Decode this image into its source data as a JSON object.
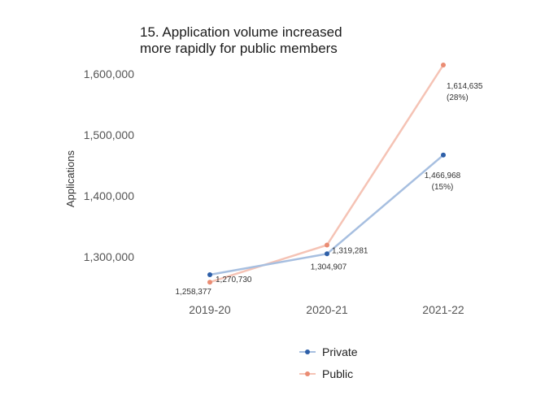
{
  "chart_data": {
    "type": "line",
    "title_line1": "15. Application volume increased",
    "title_line2": "more rapidly for public members",
    "xlabel": "",
    "ylabel": "Applications",
    "categories": [
      "2019-20",
      "2020-21",
      "2021-22"
    ],
    "y_ticks": [
      1300000,
      1400000,
      1500000,
      1600000
    ],
    "y_tick_labels": [
      "1,300,000",
      "1,400,000",
      "1,500,000",
      "1,600,000"
    ],
    "ylim": [
      1250000,
      1625000
    ],
    "grid": false,
    "legend_position": "bottom-center",
    "series": [
      {
        "name": "Private",
        "color": "#a7bfe0",
        "marker_color": "#2e5fa8",
        "values": [
          1270730,
          1304907,
          1466968
        ],
        "labels": [
          "1,270,730",
          "1,304,907",
          "1,466,968\n(15%)"
        ]
      },
      {
        "name": "Public",
        "color": "#f5c3b5",
        "marker_color": "#ea8c73",
        "values": [
          1258377,
          1319281,
          1614635
        ],
        "labels": [
          "1,258,377",
          "1,319,281",
          "1,614,635\n(28%)"
        ]
      }
    ]
  }
}
